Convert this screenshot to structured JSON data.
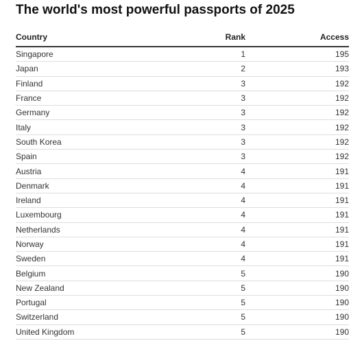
{
  "title": "The world's most powerful passports of 2025",
  "chart_data": {
    "type": "table",
    "title": "The world's most powerful passports of 2025",
    "columns": [
      "Country",
      "Rank",
      "Access"
    ],
    "rows": [
      [
        "Singapore",
        "1",
        "195"
      ],
      [
        "Japan",
        "2",
        "193"
      ],
      [
        "Finland",
        "3",
        "192"
      ],
      [
        "France",
        "3",
        "192"
      ],
      [
        "Germany",
        "3",
        "192"
      ],
      [
        "Italy",
        "3",
        "192"
      ],
      [
        "South Korea",
        "3",
        "192"
      ],
      [
        "Spain",
        "3",
        "192"
      ],
      [
        "Austria",
        "4",
        "191"
      ],
      [
        "Denmark",
        "4",
        "191"
      ],
      [
        "Ireland",
        "4",
        "191"
      ],
      [
        "Luxembourg",
        "4",
        "191"
      ],
      [
        "Netherlands",
        "4",
        "191"
      ],
      [
        "Norway",
        "4",
        "191"
      ],
      [
        "Sweden",
        "4",
        "191"
      ],
      [
        "Belgium",
        "5",
        "190"
      ],
      [
        "New Zealand",
        "5",
        "190"
      ],
      [
        "Portugal",
        "5",
        "190"
      ],
      [
        "Switzerland",
        "5",
        "190"
      ],
      [
        "United Kingdom",
        "5",
        "190"
      ]
    ]
  }
}
